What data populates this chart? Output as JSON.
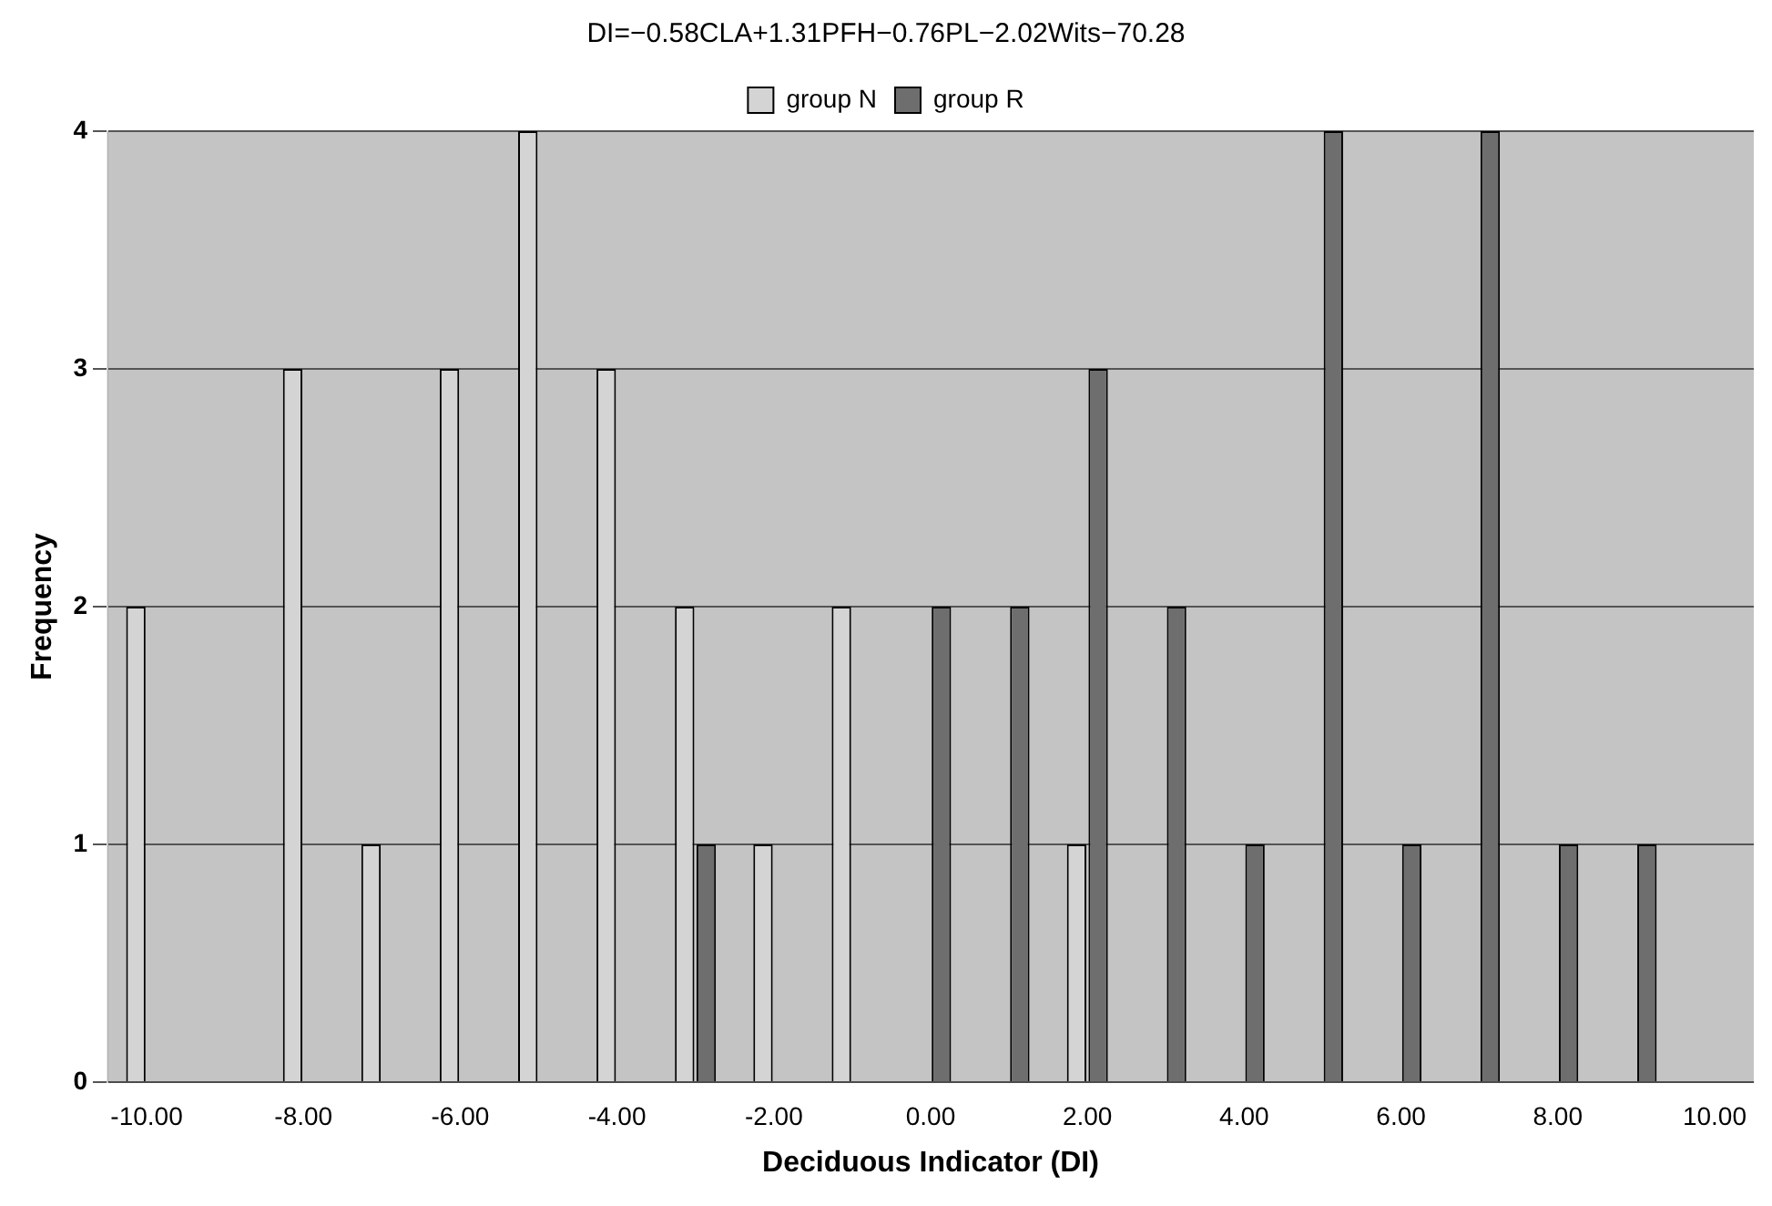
{
  "chart_data": {
    "type": "bar",
    "title": "DI=−0.58CLA+1.31PFH−0.76PL−2.02Wits−70.28",
    "xlabel": "Deciduous Indicator (DI)",
    "ylabel": "Frequency",
    "categories": [
      "-10.00",
      null,
      "-8.00",
      null,
      "-6.00",
      null,
      "-4.00",
      null,
      "-2.00",
      null,
      "0.00",
      null,
      "2.00",
      null,
      "4.00",
      null,
      "6.00",
      null,
      "8.00",
      null,
      "10.00"
    ],
    "series": [
      {
        "name": "group N",
        "color": "#d4d4d4",
        "values": [
          2,
          0,
          3,
          1,
          3,
          4,
          3,
          2,
          1,
          2,
          0,
          0,
          1,
          0,
          0,
          0,
          0,
          0,
          0,
          0,
          0
        ]
      },
      {
        "name": "group R",
        "color": "#6e6e6e",
        "values": [
          0,
          0,
          0,
          0,
          0,
          0,
          0,
          1,
          0,
          0,
          2,
          2,
          3,
          2,
          1,
          4,
          1,
          4,
          1,
          1,
          0
        ]
      }
    ],
    "ylim": [
      0,
      4
    ],
    "yticks": [
      0,
      1,
      2,
      3,
      4
    ],
    "grid": "y",
    "legend": "top"
  }
}
